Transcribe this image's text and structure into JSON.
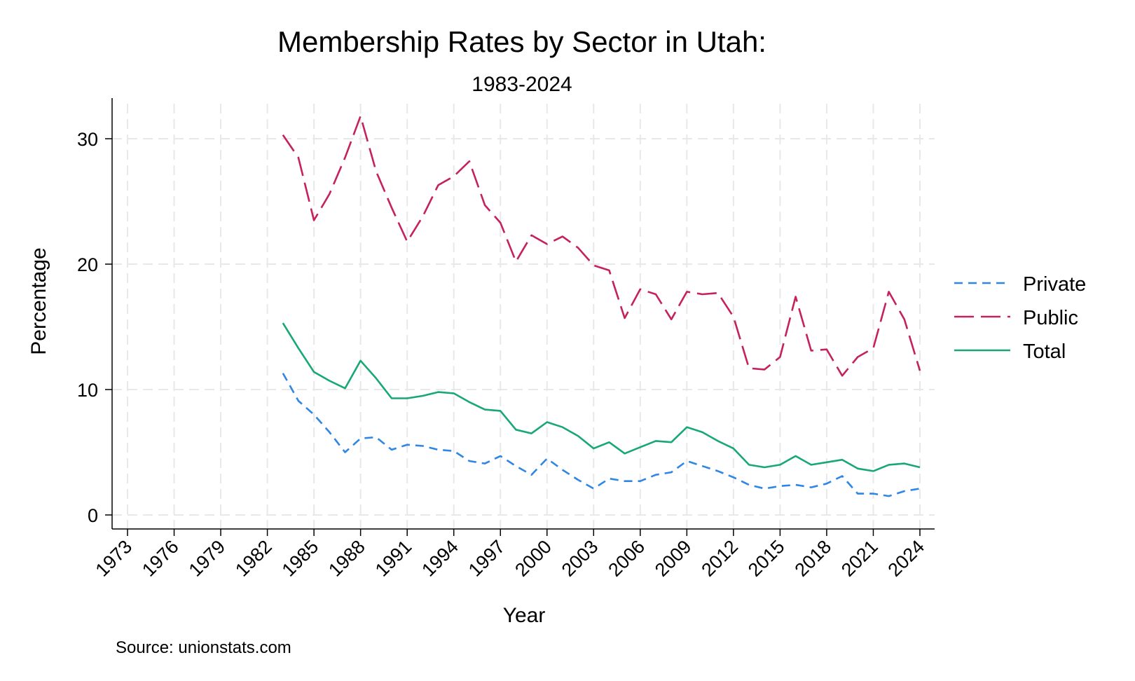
{
  "chart_data": {
    "type": "line",
    "title": "Membership Rates by Sector in Utah:",
    "subtitle": "1983-2024",
    "xlabel": "Year",
    "ylabel": "Percentage",
    "note": "Source: unionstats.com",
    "xlim": [
      1973,
      2024
    ],
    "ylim": [
      0,
      32
    ],
    "xticks": [
      "1973",
      "1976",
      "1979",
      "1982",
      "1985",
      "1988",
      "1991",
      "1994",
      "1997",
      "2000",
      "2003",
      "2006",
      "2009",
      "2012",
      "2015",
      "2018",
      "2021",
      "2024"
    ],
    "yticks": [
      "0",
      "10",
      "20",
      "30"
    ],
    "grid": true,
    "legend_position": "right",
    "x": [
      1983,
      1984,
      1985,
      1986,
      1987,
      1988,
      1989,
      1990,
      1991,
      1992,
      1993,
      1994,
      1995,
      1996,
      1997,
      1998,
      1999,
      2000,
      2001,
      2002,
      2003,
      2004,
      2005,
      2006,
      2007,
      2008,
      2009,
      2010,
      2011,
      2012,
      2013,
      2014,
      2015,
      2016,
      2017,
      2018,
      2019,
      2020,
      2021,
      2022,
      2023,
      2024
    ],
    "series": [
      {
        "name": "Private",
        "color": "#2f86e3",
        "dash": "short",
        "values": [
          11.3,
          9.1,
          8.0,
          6.6,
          5.0,
          6.1,
          6.2,
          5.2,
          5.6,
          5.5,
          5.2,
          5.1,
          4.3,
          4.1,
          4.7,
          3.9,
          3.2,
          4.5,
          3.6,
          2.8,
          2.1,
          2.9,
          2.7,
          2.7,
          3.2,
          3.4,
          4.3,
          3.9,
          3.5,
          3.0,
          2.4,
          2.1,
          2.3,
          2.4,
          2.2,
          2.5,
          3.1,
          1.7,
          1.7,
          1.5,
          1.9,
          2.1
        ]
      },
      {
        "name": "Public",
        "color": "#c4215e",
        "dash": "long",
        "values": [
          30.3,
          28.5,
          23.5,
          25.6,
          28.5,
          31.8,
          27.4,
          24.5,
          21.8,
          23.8,
          26.3,
          27.0,
          28.2,
          24.7,
          23.3,
          20.2,
          22.3,
          21.6,
          22.2,
          21.3,
          19.9,
          19.5,
          15.7,
          18.0,
          17.6,
          15.6,
          17.8,
          17.6,
          17.7,
          15.8,
          11.7,
          11.6,
          12.6,
          17.4,
          13.1,
          13.2,
          11.1,
          12.6,
          13.3,
          17.8,
          15.6,
          11.5
        ]
      },
      {
        "name": "Total",
        "color": "#17a874",
        "dash": "solid",
        "values": [
          15.3,
          13.3,
          11.4,
          10.7,
          10.1,
          12.3,
          10.9,
          9.3,
          9.3,
          9.5,
          9.8,
          9.7,
          9.0,
          8.4,
          8.3,
          6.8,
          6.5,
          7.4,
          7.0,
          6.3,
          5.3,
          5.8,
          4.9,
          5.4,
          5.9,
          5.8,
          7.0,
          6.6,
          5.9,
          5.3,
          4.0,
          3.8,
          4.0,
          4.7,
          4.0,
          4.2,
          4.4,
          3.7,
          3.5,
          4.0,
          4.1,
          3.8
        ]
      }
    ]
  }
}
